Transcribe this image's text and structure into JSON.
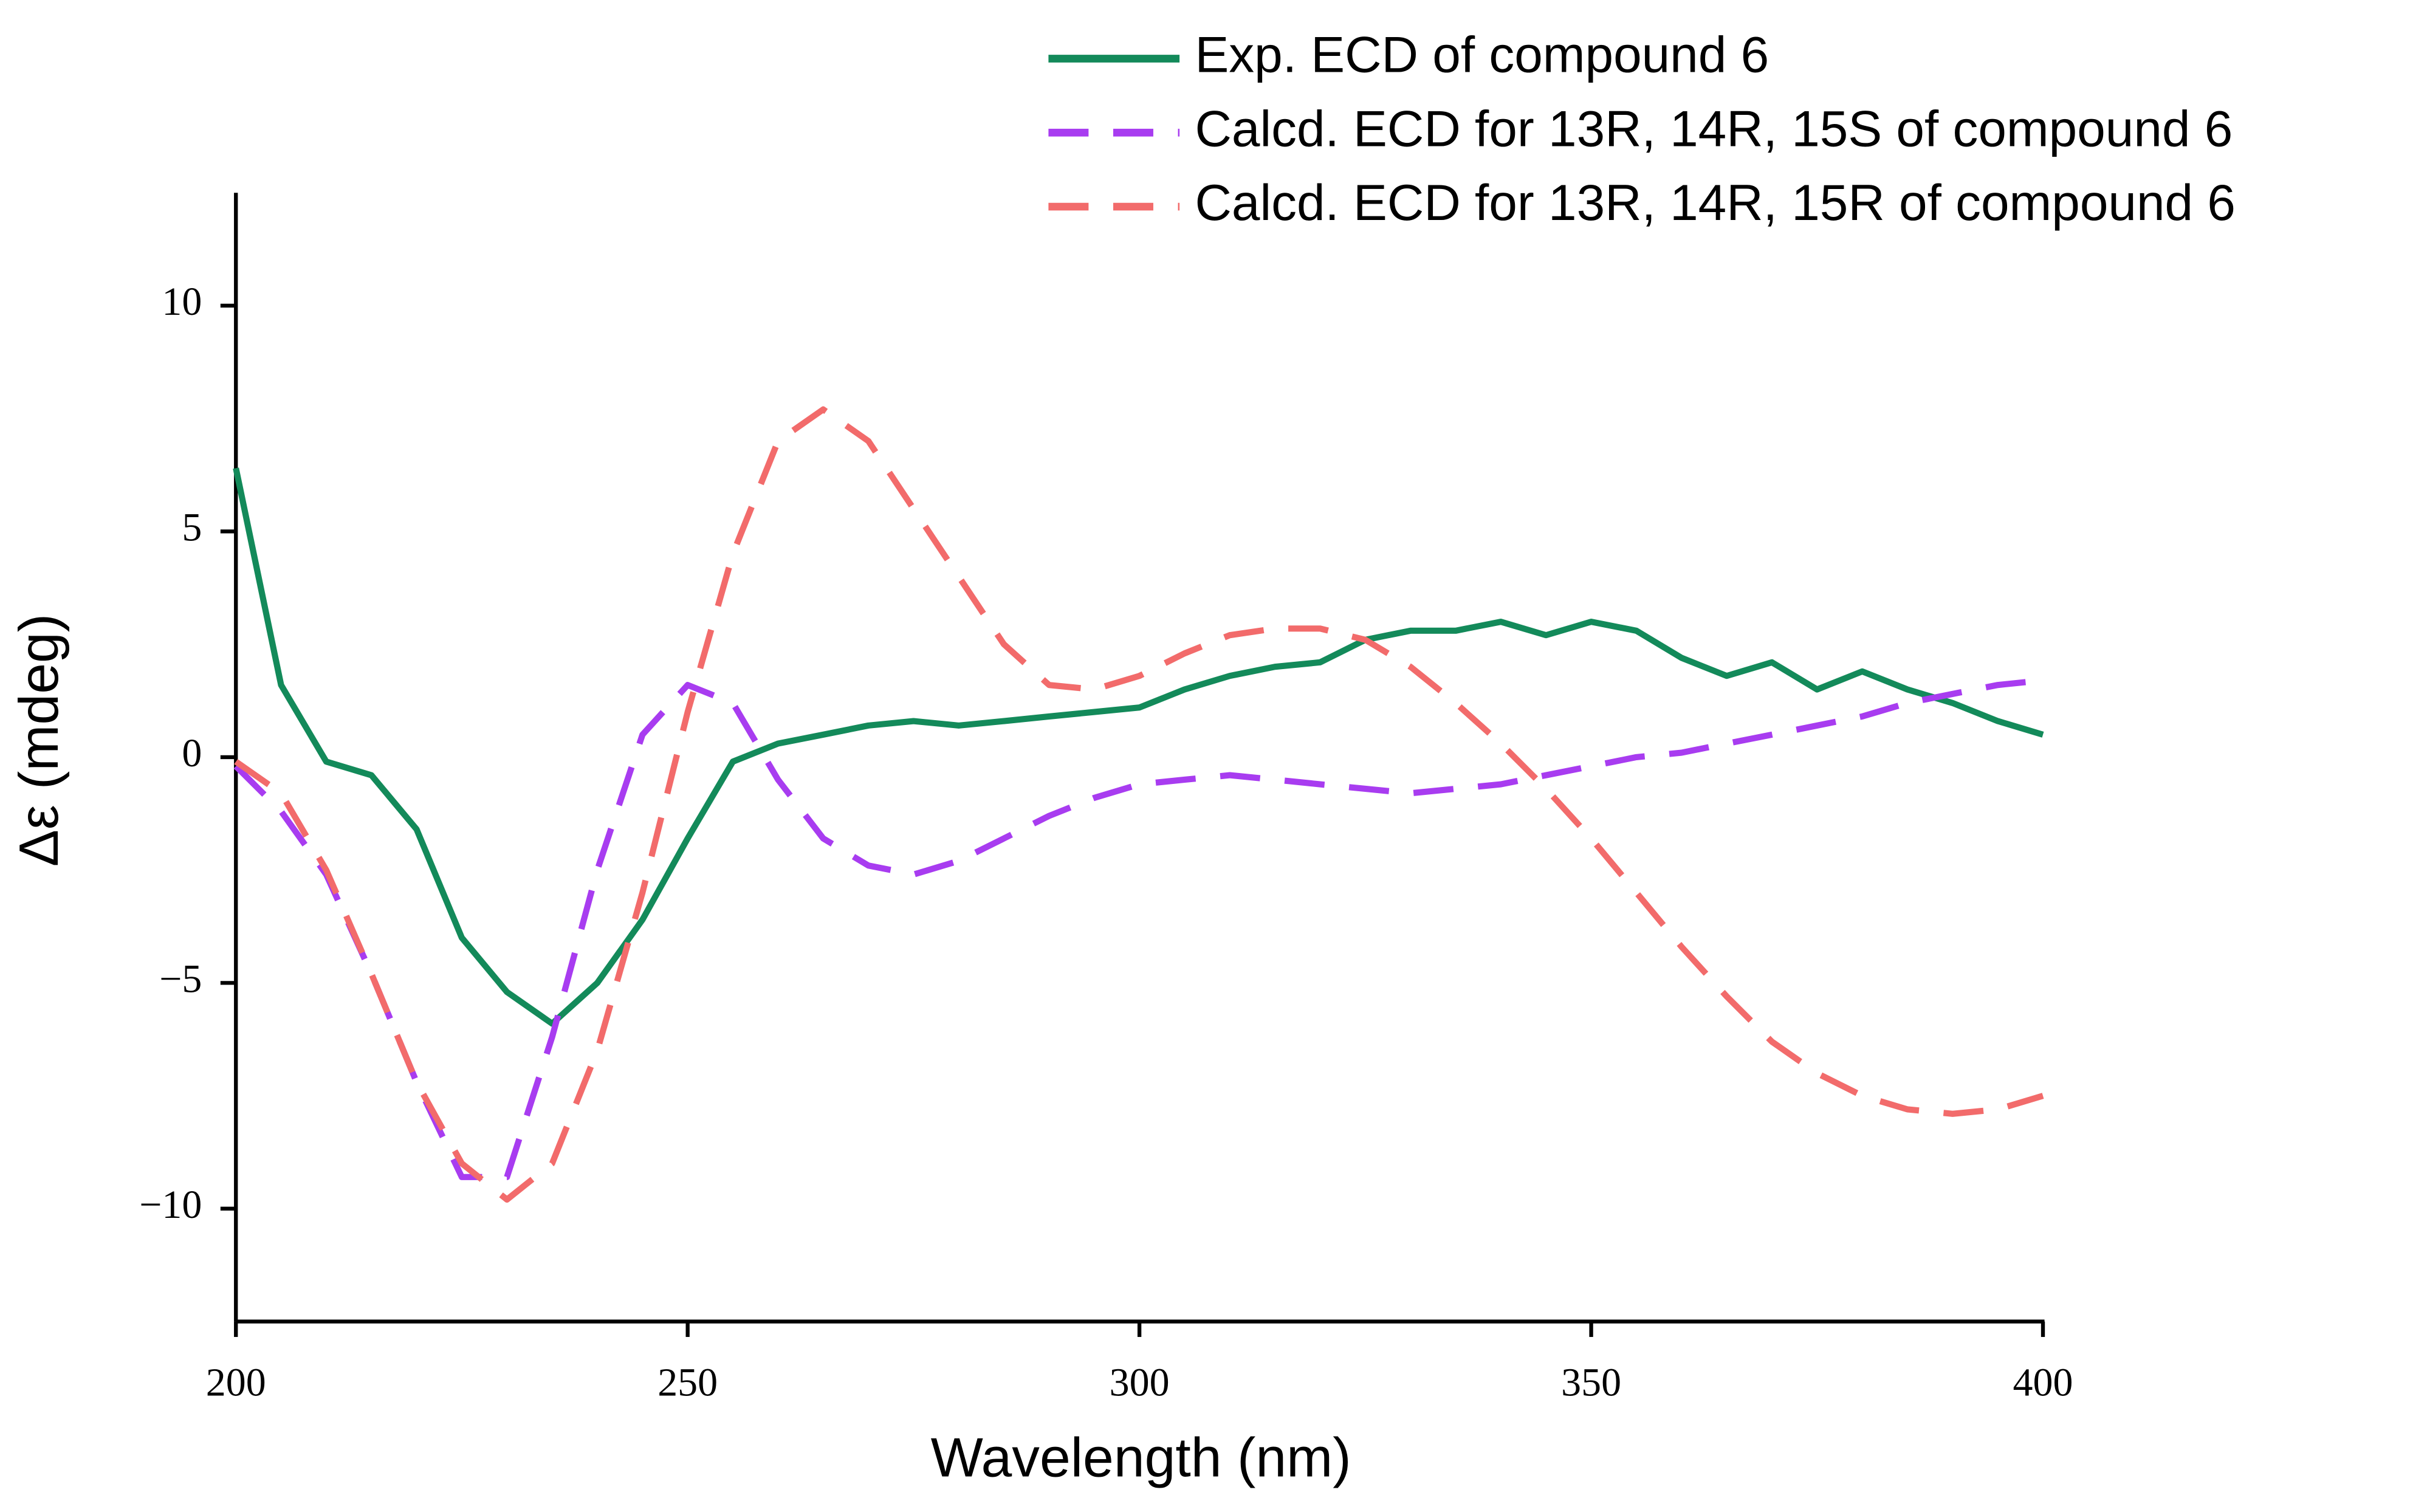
{
  "chart_data": {
    "type": "line",
    "xlabel": "Wavelength (nm)",
    "ylabel": "Δε (mdeg)",
    "x": [
      200,
      205,
      210,
      215,
      220,
      225,
      230,
      235,
      240,
      245,
      250,
      255,
      260,
      265,
      270,
      275,
      280,
      285,
      290,
      295,
      300,
      305,
      310,
      315,
      320,
      325,
      330,
      335,
      340,
      345,
      350,
      355,
      360,
      365,
      370,
      375,
      380,
      385,
      390,
      395,
      400
    ],
    "series": [
      {
        "name": "Exp. ECD of compound 6",
        "color": "#138a5a",
        "dash": false,
        "values": [
          6.4,
          1.6,
          -0.1,
          -0.4,
          -1.6,
          -4.0,
          -5.2,
          -5.9,
          -5.0,
          -3.6,
          -1.8,
          -0.1,
          0.3,
          0.5,
          0.7,
          0.8,
          0.7,
          0.8,
          0.9,
          1.0,
          1.1,
          1.5,
          1.8,
          2.0,
          2.1,
          2.6,
          2.8,
          2.8,
          3.0,
          2.7,
          3.0,
          2.8,
          2.2,
          1.8,
          2.1,
          1.5,
          1.9,
          1.5,
          1.2,
          0.8,
          0.5
        ]
      },
      {
        "name": "Calcd. ECD for 13R, 14R, 15S of compound 6",
        "color": "#a83cf0",
        "dash": true,
        "values": [
          -0.2,
          -1.2,
          -2.6,
          -4.8,
          -7.2,
          -9.3,
          -9.3,
          -6.2,
          -2.5,
          0.5,
          1.6,
          1.2,
          -0.5,
          -1.8,
          -2.4,
          -2.6,
          -2.3,
          -1.8,
          -1.3,
          -0.9,
          -0.6,
          -0.5,
          -0.4,
          -0.5,
          -0.6,
          -0.7,
          -0.8,
          -0.7,
          -0.6,
          -0.4,
          -0.2,
          0,
          0.1,
          0.3,
          0.5,
          0.7,
          0.9,
          1.2,
          1.4,
          1.6,
          1.7
        ]
      },
      {
        "name": "Calcd. ECD for 13R, 14R, 15R of compound 6",
        "color": "#f26b6b",
        "dash": true,
        "values": [
          -0.1,
          -0.8,
          -2.5,
          -4.8,
          -7.2,
          -9.0,
          -9.8,
          -9.0,
          -6.5,
          -3.0,
          1.0,
          4.5,
          7.0,
          7.7,
          7.0,
          5.5,
          4.0,
          2.5,
          1.6,
          1.5,
          1.8,
          2.3,
          2.7,
          2.85,
          2.85,
          2.6,
          2.0,
          1.2,
          0.3,
          -0.7,
          -1.8,
          -3.0,
          -4.2,
          -5.3,
          -6.3,
          -7.0,
          -7.5,
          -7.8,
          -7.9,
          -7.8,
          -7.5
        ]
      }
    ],
    "xlim": [
      200,
      400
    ],
    "xticks": [
      200,
      250,
      300,
      350,
      400
    ],
    "ylim": [
      -12.5,
      12.5
    ],
    "yticks": [
      {
        "value": -10,
        "label": "−10"
      },
      {
        "value": -5,
        "label": "−5"
      },
      0,
      5,
      10
    ],
    "grid": false,
    "legend": "top-right"
  }
}
